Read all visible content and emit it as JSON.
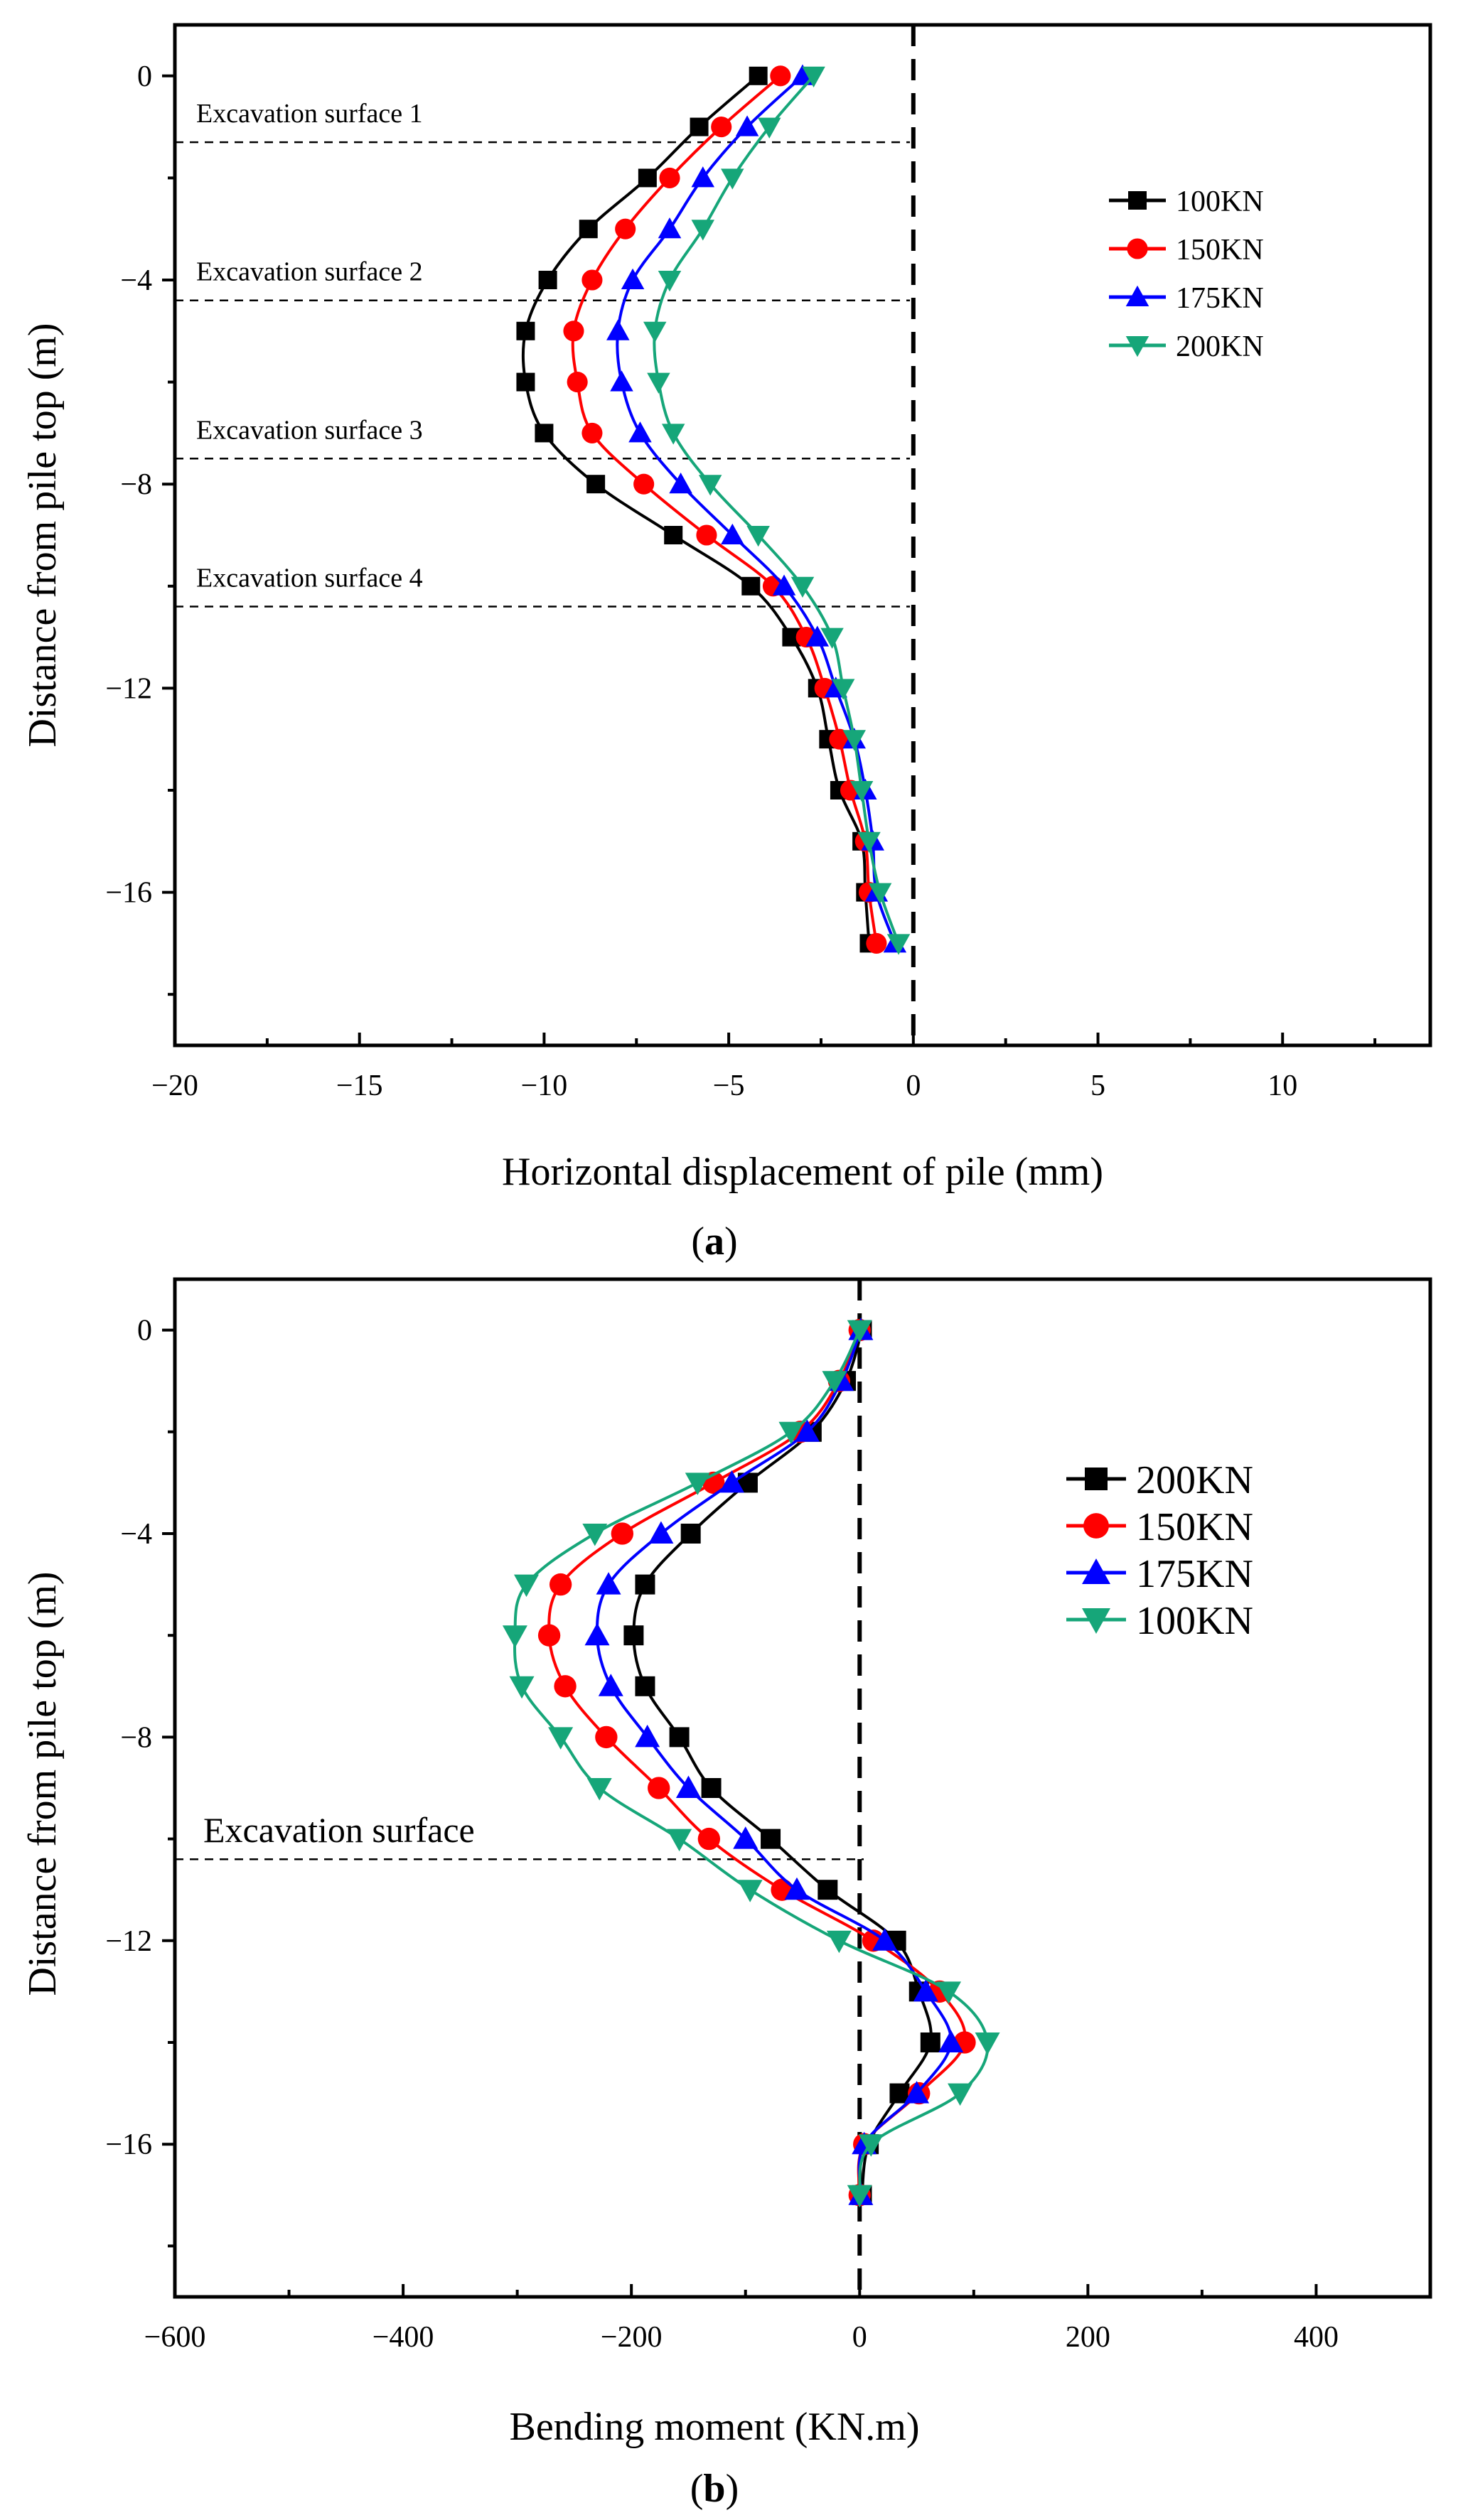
{
  "figure": {
    "panel_a_letter": "a",
    "panel_b_letter": "b",
    "paren_open": "(",
    "paren_close": ")"
  },
  "chart_data": [
    {
      "type": "line",
      "panel": "a",
      "title": "",
      "xlabel": "Horizontal displacement of pile (mm)",
      "ylabel": "Distance from pile top (m)",
      "xlim": [
        -20,
        14
      ],
      "ylim": [
        -19,
        1
      ],
      "xticks": [
        -20,
        -15,
        -10,
        -5,
        0,
        5,
        10
      ],
      "xtick_labels": [
        "−20",
        "−15",
        "−10",
        "−5",
        "0",
        "5",
        "10"
      ],
      "yticks": [
        0,
        -4,
        -8,
        -12,
        -16
      ],
      "ytick_labels": [
        "0",
        "−4",
        "−8",
        "−12",
        "−16"
      ],
      "zero_line_x": 0,
      "legend_position": "top-right",
      "annotations": [
        {
          "text": "Excavation surface 1",
          "depth": -1.3
        },
        {
          "text": "Excavation surface 2",
          "depth": -4.4
        },
        {
          "text": "Excavation surface 3",
          "depth": -7.5
        },
        {
          "text": "Excavation surface 4",
          "depth": -10.4
        }
      ],
      "series": [
        {
          "name": "100KN",
          "color": "#000000",
          "marker": "square",
          "points": [
            [
              -4.2,
              0
            ],
            [
              -5.8,
              -1
            ],
            [
              -7.2,
              -2
            ],
            [
              -8.8,
              -3
            ],
            [
              -9.9,
              -4
            ],
            [
              -10.5,
              -5
            ],
            [
              -10.5,
              -6
            ],
            [
              -10.0,
              -7
            ],
            [
              -8.6,
              -8
            ],
            [
              -6.5,
              -9
            ],
            [
              -4.4,
              -10
            ],
            [
              -3.3,
              -11
            ],
            [
              -2.6,
              -12
            ],
            [
              -2.3,
              -13
            ],
            [
              -2.0,
              -14
            ],
            [
              -1.4,
              -15
            ],
            [
              -1.3,
              -16
            ],
            [
              -1.2,
              -17
            ]
          ]
        },
        {
          "name": "150KN",
          "color": "#ff0000",
          "marker": "circle",
          "points": [
            [
              -3.6,
              0
            ],
            [
              -5.2,
              -1
            ],
            [
              -6.6,
              -2
            ],
            [
              -7.8,
              -3
            ],
            [
              -8.7,
              -4
            ],
            [
              -9.2,
              -5
            ],
            [
              -9.1,
              -6
            ],
            [
              -8.7,
              -7
            ],
            [
              -7.3,
              -8
            ],
            [
              -5.6,
              -9
            ],
            [
              -3.8,
              -10
            ],
            [
              -2.9,
              -11
            ],
            [
              -2.4,
              -12
            ],
            [
              -2.0,
              -13
            ],
            [
              -1.7,
              -14
            ],
            [
              -1.3,
              -15
            ],
            [
              -1.2,
              -16
            ],
            [
              -1.0,
              -17
            ]
          ]
        },
        {
          "name": "175KN",
          "color": "#0000ff",
          "marker": "triangle-up",
          "points": [
            [
              -3.0,
              0
            ],
            [
              -4.5,
              -1
            ],
            [
              -5.7,
              -2
            ],
            [
              -6.6,
              -3
            ],
            [
              -7.6,
              -4
            ],
            [
              -8.0,
              -5
            ],
            [
              -7.9,
              -6
            ],
            [
              -7.4,
              -7
            ],
            [
              -6.3,
              -8
            ],
            [
              -4.9,
              -9
            ],
            [
              -3.5,
              -10
            ],
            [
              -2.6,
              -11
            ],
            [
              -2.1,
              -12
            ],
            [
              -1.6,
              -13
            ],
            [
              -1.3,
              -14
            ],
            [
              -1.1,
              -15
            ],
            [
              -1.0,
              -16
            ],
            [
              -0.5,
              -17
            ]
          ]
        },
        {
          "name": "200KN",
          "color": "#16a679",
          "marker": "triangle-down",
          "points": [
            [
              -2.7,
              0
            ],
            [
              -3.9,
              -1
            ],
            [
              -4.9,
              -2
            ],
            [
              -5.7,
              -3
            ],
            [
              -6.6,
              -4
            ],
            [
              -7.0,
              -5
            ],
            [
              -6.9,
              -6
            ],
            [
              -6.5,
              -7
            ],
            [
              -5.5,
              -8
            ],
            [
              -4.2,
              -9
            ],
            [
              -3.0,
              -10
            ],
            [
              -2.2,
              -11
            ],
            [
              -1.9,
              -12
            ],
            [
              -1.6,
              -13
            ],
            [
              -1.4,
              -14
            ],
            [
              -1.2,
              -15
            ],
            [
              -0.9,
              -16
            ],
            [
              -0.4,
              -17
            ]
          ]
        }
      ]
    },
    {
      "type": "line",
      "panel": "b",
      "title": "",
      "xlabel": "Bending moment (KN.m)",
      "ylabel": "Distance from pile top (m)",
      "xlim": [
        -600,
        500
      ],
      "ylim": [
        -19,
        1
      ],
      "xticks": [
        -600,
        -400,
        -200,
        0,
        200,
        400
      ],
      "xtick_labels": [
        "−600",
        "−400",
        "−200",
        "0",
        "200",
        "400"
      ],
      "yticks": [
        0,
        -4,
        -8,
        -12,
        -16
      ],
      "ytick_labels": [
        "0",
        "−4",
        "−8",
        "−12",
        "−16"
      ],
      "zero_line_x": 0,
      "legend_position": "top-right",
      "annotations": [
        {
          "text": "Excavation surface",
          "depth": -10.4
        }
      ],
      "series": [
        {
          "name": "200KN",
          "color": "#000000",
          "marker": "square",
          "points": [
            [
              2,
              0
            ],
            [
              -12,
              -1
            ],
            [
              -42,
              -2
            ],
            [
              -98,
              -3
            ],
            [
              -148,
              -4
            ],
            [
              -188,
              -5
            ],
            [
              -198,
              -6
            ],
            [
              -188,
              -7
            ],
            [
              -158,
              -8
            ],
            [
              -130,
              -9
            ],
            [
              -78,
              -10
            ],
            [
              -28,
              -11
            ],
            [
              32,
              -12
            ],
            [
              52,
              -13
            ],
            [
              62,
              -14
            ],
            [
              35,
              -15
            ],
            [
              8,
              -16
            ],
            [
              2,
              -17
            ]
          ]
        },
        {
          "name": "150KN",
          "color": "#ff0000",
          "marker": "circle",
          "points": [
            [
              0,
              0
            ],
            [
              -18,
              -1
            ],
            [
              -52,
              -2
            ],
            [
              -128,
              -3
            ],
            [
              -208,
              -4
            ],
            [
              -262,
              -5
            ],
            [
              -272,
              -6
            ],
            [
              -258,
              -7
            ],
            [
              -222,
              -8
            ],
            [
              -176,
              -9
            ],
            [
              -132,
              -10
            ],
            [
              -68,
              -11
            ],
            [
              12,
              -12
            ],
            [
              70,
              -13
            ],
            [
              92,
              -14
            ],
            [
              52,
              -15
            ],
            [
              4,
              -16
            ],
            [
              0,
              -17
            ]
          ]
        },
        {
          "name": "175KN",
          "color": "#0000ff",
          "marker": "triangle-up",
          "points": [
            [
              1,
              0
            ],
            [
              -16,
              -1
            ],
            [
              -46,
              -2
            ],
            [
              -112,
              -3
            ],
            [
              -174,
              -4
            ],
            [
              -220,
              -5
            ],
            [
              -230,
              -6
            ],
            [
              -218,
              -7
            ],
            [
              -186,
              -8
            ],
            [
              -150,
              -9
            ],
            [
              -100,
              -10
            ],
            [
              -55,
              -11
            ],
            [
              22,
              -12
            ],
            [
              58,
              -13
            ],
            [
              80,
              -14
            ],
            [
              50,
              -15
            ],
            [
              4,
              -16
            ],
            [
              1,
              -17
            ]
          ]
        },
        {
          "name": "100KN",
          "color": "#16a679",
          "marker": "triangle-down",
          "points": [
            [
              0,
              0
            ],
            [
              -22,
              -1
            ],
            [
              -60,
              -2
            ],
            [
              -142,
              -3
            ],
            [
              -232,
              -4
            ],
            [
              -292,
              -5
            ],
            [
              -302,
              -6
            ],
            [
              -296,
              -7
            ],
            [
              -262,
              -8
            ],
            [
              -228,
              -9
            ],
            [
              -158,
              -10
            ],
            [
              -96,
              -11
            ],
            [
              -18,
              -12
            ],
            [
              78,
              -13
            ],
            [
              112,
              -14
            ],
            [
              88,
              -15
            ],
            [
              10,
              -16
            ],
            [
              0,
              -17
            ]
          ]
        }
      ]
    }
  ]
}
